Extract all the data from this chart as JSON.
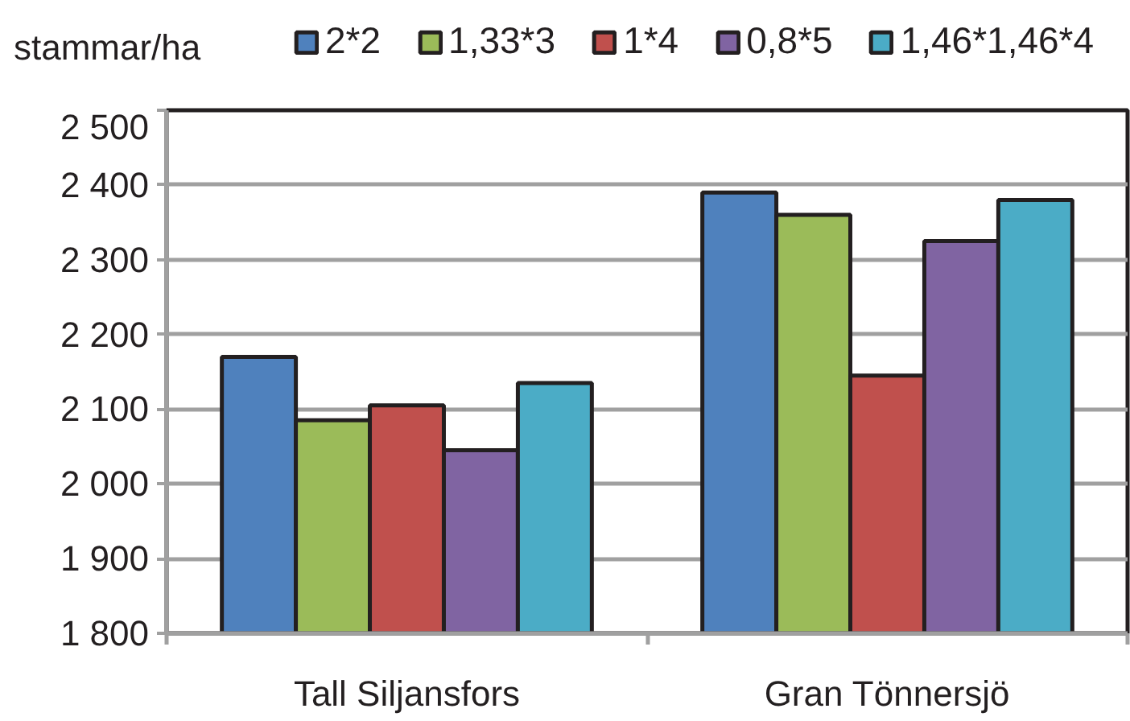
{
  "chart_data": {
    "type": "bar",
    "ylabel": "stammar/ha",
    "categories": [
      "Tall Siljansfors",
      "Gran Tönnersjö"
    ],
    "series": [
      {
        "name": "2*2",
        "color": "#4f81bd",
        "values": [
          2170,
          2390
        ]
      },
      {
        "name": "1,33*3",
        "color": "#9bbb59",
        "values": [
          2085,
          2360
        ]
      },
      {
        "name": "1*4",
        "color": "#c0504d",
        "values": [
          2105,
          2145
        ]
      },
      {
        "name": "0,8*5",
        "color": "#8064a2",
        "values": [
          2045,
          2325
        ]
      },
      {
        "name": "1,46*1,46*4",
        "color": "#4bacc6",
        "values": [
          2135,
          2380
        ]
      }
    ],
    "ylim": [
      1800,
      2500
    ],
    "yticks": [
      {
        "value": 1800,
        "label": "1 800"
      },
      {
        "value": 1900,
        "label": "1 900"
      },
      {
        "value": 2000,
        "label": "2 000"
      },
      {
        "value": 2100,
        "label": "2 100"
      },
      {
        "value": 2200,
        "label": "2 200"
      },
      {
        "value": 2300,
        "label": "2 300"
      },
      {
        "value": 2400,
        "label": "2 400"
      },
      {
        "value": 2500,
        "label": "2 500"
      }
    ],
    "grid": "y",
    "legend": "top"
  }
}
